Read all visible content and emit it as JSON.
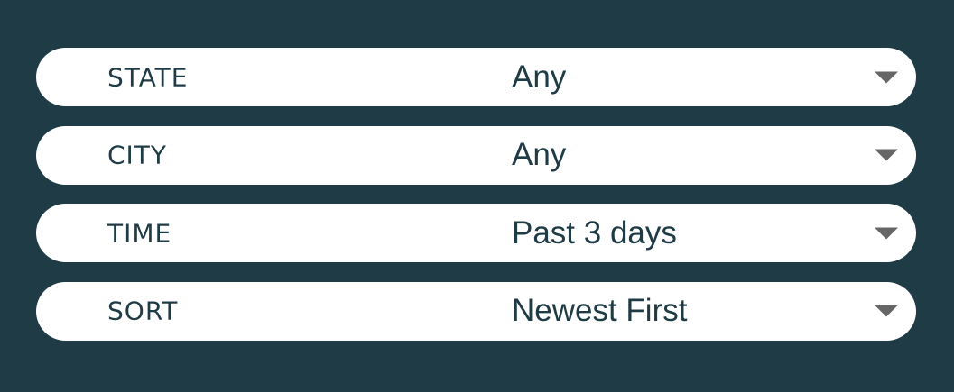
{
  "filters": [
    {
      "label": "STATE",
      "value": "Any",
      "icon": "chevron-down-icon"
    },
    {
      "label": "CITY",
      "value": "Any",
      "icon": "chevron-down-icon"
    },
    {
      "label": "TIME",
      "value": "Past 3 days",
      "icon": "chevron-down-icon"
    },
    {
      "label": "SORT",
      "value": "Newest First",
      "icon": "chevron-down-icon"
    }
  ],
  "colors": {
    "background": "#1f3b45",
    "field_background": "#ffffff",
    "text": "#1f3b45",
    "arrow": "#666666"
  }
}
